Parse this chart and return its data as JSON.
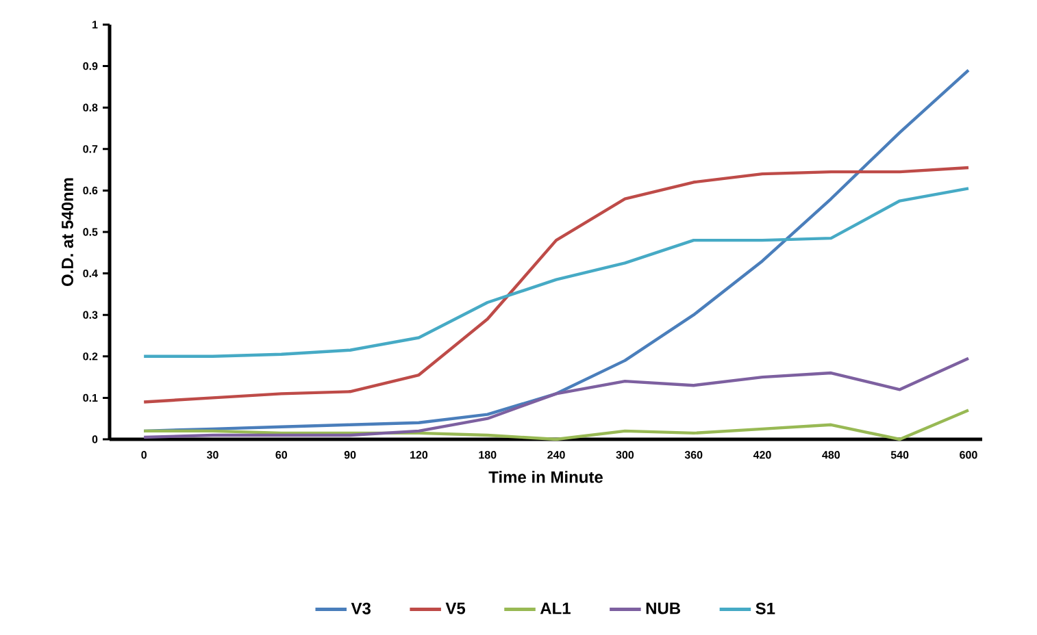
{
  "chart_data": {
    "type": "line",
    "xlabel": "Time in Minute",
    "ylabel": "O.D. at 540nm",
    "categories": [
      "0",
      "30",
      "60",
      "90",
      "120",
      "180",
      "240",
      "300",
      "360",
      "420",
      "480",
      "540",
      "600"
    ],
    "series": [
      {
        "name": "V3",
        "color": "#4a7ebb",
        "values": [
          0.02,
          0.025,
          0.03,
          0.035,
          0.04,
          0.06,
          0.11,
          0.19,
          0.3,
          0.43,
          0.58,
          0.74,
          0.89
        ]
      },
      {
        "name": "V5",
        "color": "#be4b48",
        "values": [
          0.09,
          0.1,
          0.11,
          0.115,
          0.155,
          0.29,
          0.48,
          0.58,
          0.62,
          0.64,
          0.645,
          0.645,
          0.655
        ]
      },
      {
        "name": "AL1",
        "color": "#98b954",
        "values": [
          0.02,
          0.02,
          0.015,
          0.015,
          0.015,
          0.01,
          0.0,
          0.02,
          0.015,
          0.025,
          0.035,
          0.0,
          0.07
        ]
      },
      {
        "name": "NUB",
        "color": "#7d60a0",
        "values": [
          0.005,
          0.01,
          0.01,
          0.01,
          0.02,
          0.05,
          0.11,
          0.14,
          0.13,
          0.15,
          0.16,
          0.12,
          0.195
        ]
      },
      {
        "name": "S1",
        "color": "#46aac5",
        "values": [
          0.2,
          0.2,
          0.205,
          0.215,
          0.245,
          0.33,
          0.385,
          0.425,
          0.48,
          0.48,
          0.485,
          0.575,
          0.605
        ]
      }
    ],
    "ylim": [
      0,
      1
    ],
    "yticks": [
      0,
      0.1,
      0.2,
      0.3,
      0.4,
      0.5,
      0.6,
      0.7,
      0.8,
      0.9,
      1
    ],
    "grid": false,
    "legend": "bottom",
    "marker": "none",
    "line_style": "solid"
  }
}
